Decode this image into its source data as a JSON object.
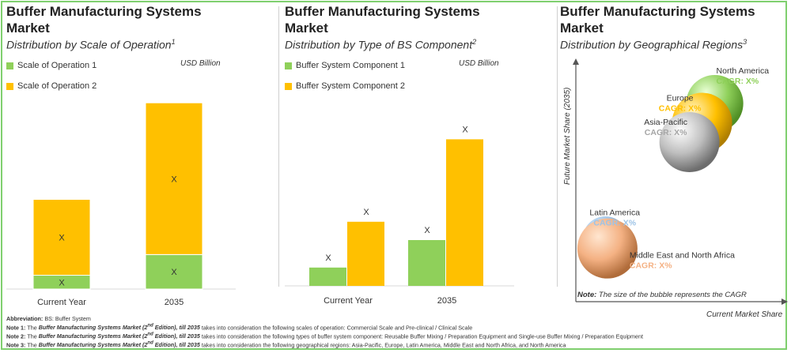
{
  "colors": {
    "green": "#8fd05a",
    "orange": "#ffc000",
    "gray_text": "#a6a6a6",
    "blue_text": "#9dc3e6",
    "peach_text": "#f4b183"
  },
  "chart_data": [
    {
      "type": "bar",
      "stacked": true,
      "title": "Buffer Manufacturing Systems Market",
      "subtitle": "Distribution by Scale of Operation",
      "subtitle_sup": "1",
      "unit": "USD Billion",
      "categories": [
        "Current Year",
        "2035"
      ],
      "series": [
        {
          "name": "Scale of Operation 1",
          "values": [
            1.0,
            2.5
          ],
          "labels": [
            "X",
            "X"
          ]
        },
        {
          "name": "Scale of Operation 2",
          "values": [
            5.5,
            11.0
          ],
          "labels": [
            "X",
            "X"
          ]
        }
      ],
      "ylim": [
        0,
        15
      ]
    },
    {
      "type": "bar",
      "stacked": false,
      "title": "Buffer Manufacturing Systems Market",
      "subtitle": "Distribution by Type of BS Component",
      "subtitle_sup": "2",
      "unit": "USD Billion",
      "categories": [
        "Current Year",
        "2035"
      ],
      "series": [
        {
          "name": "Buffer System Component 1",
          "values": [
            1.0,
            2.5
          ],
          "labels": [
            "X",
            "X"
          ]
        },
        {
          "name": "Buffer System Component 2",
          "values": [
            3.5,
            8.0
          ],
          "labels": [
            "X",
            "X"
          ]
        }
      ],
      "ylim": [
        0,
        10
      ]
    },
    {
      "type": "scatter",
      "bubble": true,
      "title": "Buffer Manufacturing Systems Market",
      "subtitle": "Distribution by Geographical Regions",
      "subtitle_sup": "3",
      "xlabel": "Current Market Share",
      "ylabel": "Future Market Share (2035)",
      "note_label": "Note:",
      "note": "The size of the bubble represents the CAGR",
      "points": [
        {
          "name": "Middle East and North Africa",
          "cagr": "CAGR: X%",
          "x": 0.15,
          "y": 0.22,
          "size": 1.0
        },
        {
          "name": "Latin America",
          "cagr": "CAGR: X%",
          "x": 0.14,
          "y": 0.26,
          "size": 0.75
        },
        {
          "name": "North America",
          "cagr": "CAGR: X%",
          "x": 0.66,
          "y": 0.82,
          "size": 0.95
        },
        {
          "name": "Europe",
          "cagr": "CAGR: X%",
          "x": 0.6,
          "y": 0.74,
          "size": 1.0
        },
        {
          "name": "Asia-Pacific",
          "cagr": "CAGR: X%",
          "x": 0.54,
          "y": 0.66,
          "size": 1.0
        }
      ]
    }
  ],
  "notes": {
    "abbrev_label": "Abbreviation:",
    "abbrev_text": "BS: Buffer System",
    "lines": [
      {
        "label": "Note 1",
        "title_before": "Buffer Manufacturing Systems Market (2",
        "sup": "nd",
        "title_after": " Edition), till 2035",
        "text": "takes into consideration the following scales of operation: Commercial Scale and Pre-clinical / Clinical Scale"
      },
      {
        "label": "Note 2",
        "title_before": "Buffer Manufacturing Systems Market (2",
        "sup": "nd",
        "title_after": " Edition), till 2035",
        "text": "takes into consideration the following types of buffer system component: Reusable Buffer Mixing / Preparation Equipment and Single-use Buffer Mixing / Preparation Equipment"
      },
      {
        "label": "Note 3",
        "title_before": "Buffer Manufacturing Systems Market (2",
        "sup": "nd",
        "title_after": " Edition), till 2035",
        "text": "takes into consideration the following geographical regions: Asia-Pacific, Europe, Latin America, Middle East and North Africa, and North America"
      }
    ],
    "the": "The"
  }
}
